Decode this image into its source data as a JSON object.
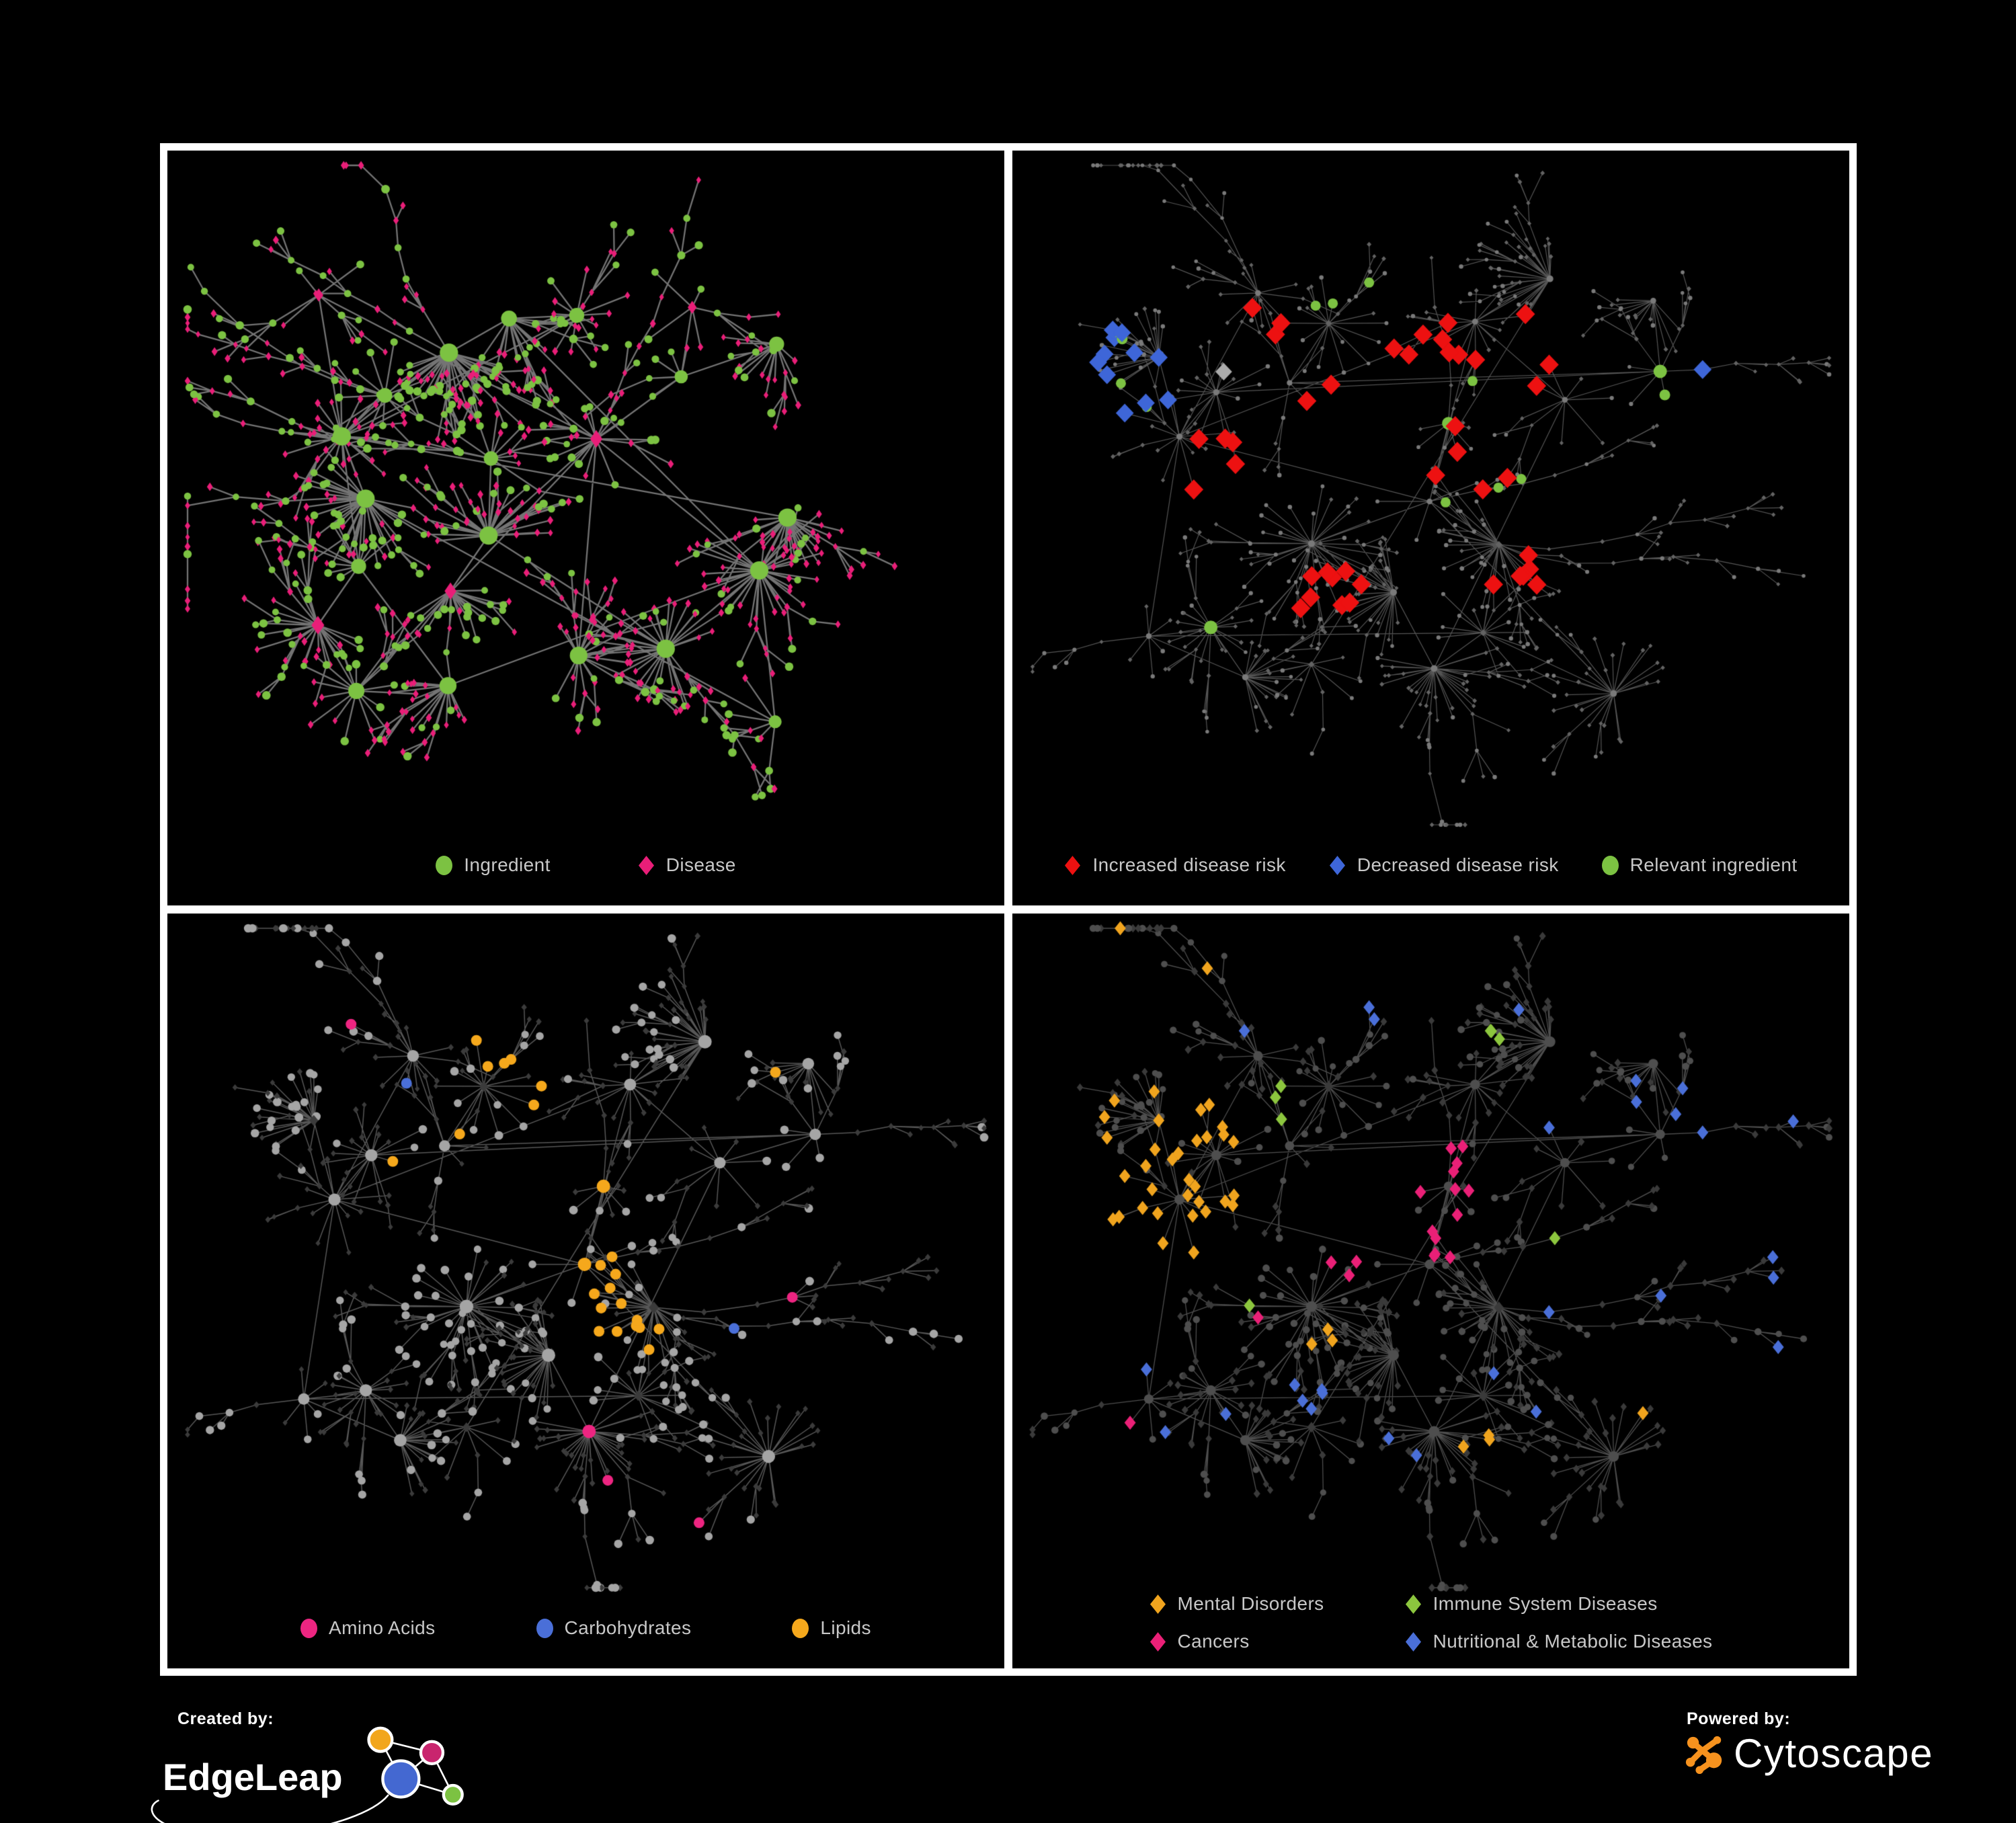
{
  "figure": {
    "background": "#000000",
    "frame_color": "#FFFFFF",
    "legend_text_color": "#C8C8C8"
  },
  "panels": [
    {
      "id": "ingredient-disease",
      "legend": [
        {
          "shape": "circle",
          "color": "#7CC242",
          "label": "Ingredient"
        },
        {
          "shape": "diamond",
          "color": "#E91E78",
          "label": "Disease"
        }
      ]
    },
    {
      "id": "disease-risk",
      "legend": [
        {
          "shape": "diamond",
          "color": "#ED1111",
          "label": "Increased disease risk"
        },
        {
          "shape": "diamond",
          "color": "#3E66D8",
          "label": "Decreased disease risk"
        },
        {
          "shape": "circle",
          "color": "#7CC242",
          "label": "Relevant ingredient"
        }
      ]
    },
    {
      "id": "nutrient-categories",
      "legend": [
        {
          "shape": "circle",
          "color": "#ED2581",
          "label": "Amino Acids"
        },
        {
          "shape": "circle",
          "color": "#4A6FD8",
          "label": "Carbohydrates"
        },
        {
          "shape": "circle",
          "color": "#F5A81C",
          "label": "Lipids"
        }
      ]
    },
    {
      "id": "disease-categories",
      "legend_columns": 2,
      "legend": [
        {
          "shape": "diamond",
          "color": "#F0A41E",
          "label": "Mental Disorders"
        },
        {
          "shape": "diamond",
          "color": "#8CC63E",
          "label": "Immune System Diseases"
        },
        {
          "shape": "diamond",
          "color": "#EA2077",
          "label": "Cancers"
        },
        {
          "shape": "diamond",
          "color": "#4A6FD8",
          "label": "Nutritional & Metabolic Diseases"
        }
      ]
    }
  ],
  "footer": {
    "created_by_label": "Created by:",
    "created_by_brand": "EdgeLeap",
    "powered_by_label": "Powered by:",
    "powered_by_brand": "Cytoscape",
    "cytoscape_orange": "#F6921E",
    "edgeleap_colors": {
      "orange": "#F2A61C",
      "magenta": "#C9256E",
      "blue": "#4468D1",
      "green": "#7CC242"
    }
  },
  "chart_data": {
    "type": "network",
    "note": "Four styled views of the same ingredient-disease association network (Cytoscape export). Node positions are procedurally approximated from seeds; colors/sizes per panel below.",
    "layout_seeds": {
      "panel_0": 13,
      "shared_panels_1_2_3": 47
    },
    "panel_styles": [
      {
        "panel": "ingredient-disease",
        "seed": 13,
        "edge_color": "#7A7A7A",
        "edge_width": 2.3,
        "edge_alpha": 0.95,
        "diamond_tall": 1.45,
        "base": {
          "circle": "#7CC242",
          "diamond": "#E91E78",
          "circle_r": 5.6,
          "diamond_s": 5.8
        },
        "hub_bonus": {
          "base": 2.5,
          "per_deg": 0.22,
          "max": 8
        },
        "jitter": 1.6,
        "highlights": []
      },
      {
        "panel": "disease-risk",
        "seed": 21,
        "edge_color": "#6A6A6A",
        "edge_width": 1.2,
        "edge_alpha": 0.8,
        "diamond_tall": 1.05,
        "base": {
          "circle": "#7A7A7A",
          "diamond": "#636363",
          "circle_r": 3.0,
          "diamond_s": 3.4
        },
        "hub_bonus": {
          "base": 0.8,
          "per_deg": 0.04,
          "max": 2
        },
        "jitter": 0.6,
        "highlights": [
          {
            "shape": "diamond",
            "color": "#ED1111",
            "size": 15,
            "radius": 60,
            "p": 0.6,
            "foci": [
              [
                0.3,
                0.29
              ],
              [
                0.4,
                0.32
              ],
              [
                0.47,
                0.35
              ],
              [
                0.37,
                0.42
              ],
              [
                0.52,
                0.29
              ],
              [
                0.63,
                0.29
              ],
              [
                0.55,
                0.46
              ],
              [
                0.37,
                0.63
              ],
              [
                0.6,
                0.61
              ],
              [
                0.33,
                0.37
              ],
              [
                0.45,
                0.42
              ],
              [
                0.25,
                0.47
              ]
            ]
          },
          {
            "shape": "diamond",
            "color": "#3E66D8",
            "size": 14,
            "radius": 46,
            "p": 0.6,
            "foci": [
              [
                0.13,
                0.3
              ],
              [
                0.16,
                0.34
              ],
              [
                0.11,
                0.39
              ],
              [
                0.155,
                0.41
              ]
            ]
          },
          {
            "shape": "diamond",
            "color": "#3E66D8",
            "size": 14,
            "radius": 26,
            "p": 0.95,
            "foci": [
              [
                0.815,
                0.335
              ],
              [
                0.838,
                0.34
              ]
            ]
          },
          {
            "shape": "diamond",
            "color": "#ABABAB",
            "size": 13,
            "radius": 34,
            "p": 0.45,
            "foci": [
              [
                0.215,
                0.27
              ],
              [
                0.33,
                0.38
              ],
              [
                0.42,
                0.4
              ],
              [
                0.465,
                0.455
              ],
              [
                0.3,
                0.55
              ],
              [
                0.25,
                0.33
              ],
              [
                0.52,
                0.44
              ]
            ]
          },
          {
            "shape": "circle",
            "color": "#7CC242",
            "size": 7.5,
            "radius": 160,
            "p": 0.15,
            "foci": [
              [
                0.33,
                0.33
              ],
              [
                0.45,
                0.35
              ],
              [
                0.25,
                0.35
              ],
              [
                0.52,
                0.38
              ],
              [
                0.4,
                0.28
              ]
            ]
          },
          {
            "shape": "circle",
            "color": "#7CC242",
            "size": 8,
            "radius": 30,
            "p": 0.9,
            "foci": [
              [
                0.79,
                0.345
              ],
              [
                0.24,
                0.7
              ],
              [
                0.13,
                0.26
              ]
            ]
          }
        ]
      },
      {
        "panel": "nutrient-categories",
        "seed": 22,
        "edge_color": "#616161",
        "edge_width": 1.5,
        "edge_alpha": 0.9,
        "diamond_tall": 1.2,
        "base": {
          "circle": "#A5A5A5",
          "diamond": "#3B3B3B",
          "circle_r": 6.0,
          "diamond_s": 4.8
        },
        "hub_bonus": {
          "base": 1.8,
          "per_deg": 0.07,
          "max": 5
        },
        "jitter": 0.9,
        "highlights": [
          {
            "shape": "circle",
            "color": "#F5A81C",
            "size": 8,
            "radius": 62,
            "p": 0.52,
            "foci": [
              [
                0.33,
                0.16
              ],
              [
                0.37,
                0.21
              ],
              [
                0.3,
                0.32
              ],
              [
                0.27,
                0.4
              ],
              [
                0.34,
                0.44
              ],
              [
                0.52,
                0.56
              ],
              [
                0.46,
                0.29
              ],
              [
                0.24,
                0.25
              ],
              [
                0.4,
                0.1
              ],
              [
                0.56,
                0.62
              ]
            ]
          },
          {
            "shape": "circle",
            "color": "#4A6FD8",
            "size": 8,
            "radius": 36,
            "p": 0.45,
            "foci": [
              [
                0.4,
                0.155
              ],
              [
                0.365,
                0.205
              ],
              [
                0.31,
                0.24
              ],
              [
                0.7,
                0.6
              ]
            ]
          },
          {
            "shape": "circle",
            "color": "#ED2581",
            "size": 8,
            "radius": 55,
            "p": 0.5,
            "foci": [
              [
                0.13,
                0.55
              ],
              [
                0.22,
                0.78
              ],
              [
                0.5,
                0.8
              ],
              [
                0.47,
                0.67
              ],
              [
                0.72,
                0.55
              ],
              [
                0.05,
                0.33
              ],
              [
                0.93,
                0.34
              ],
              [
                0.44,
                0.03
              ],
              [
                0.25,
                0.13
              ],
              [
                0.62,
                0.9
              ]
            ]
          },
          {
            "shape": "circle",
            "color": "#F5A81C",
            "size": 8,
            "radius": 9999,
            "p": 0.02,
            "foci": [
              [
                0.5,
                0.5
              ]
            ]
          }
        ]
      },
      {
        "panel": "disease-categories",
        "seed": 23,
        "edge_color": "#5C5C5C",
        "edge_width": 1.3,
        "edge_alpha": 0.85,
        "diamond_tall": 1.25,
        "base": {
          "circle": "#4E4E4E",
          "diamond": "#3A3A3A",
          "circle_r": 5.0,
          "diamond_s": 6.0
        },
        "hub_bonus": {
          "base": 1.5,
          "per_deg": 0.05,
          "max": 3
        },
        "jitter": 0.8,
        "highlights": [
          {
            "shape": "diamond",
            "color": "#F0A41E",
            "size": 10.5,
            "radius": 85,
            "p": 0.8,
            "foci": [
              [
                0.155,
                0.35
              ],
              [
                0.19,
                0.4
              ],
              [
                0.12,
                0.42
              ],
              [
                0.21,
                0.32
              ],
              [
                0.165,
                0.46
              ],
              [
                0.1,
                0.37
              ],
              [
                0.22,
                0.38
              ]
            ]
          },
          {
            "shape": "diamond",
            "color": "#F0A41E",
            "size": 10.5,
            "radius": 40,
            "p": 0.4,
            "foci": [
              [
                0.12,
                0.06
              ],
              [
                0.25,
                0.08
              ],
              [
                0.55,
                0.76
              ],
              [
                0.38,
                0.62
              ],
              [
                0.74,
                0.72
              ],
              [
                0.3,
                0.9
              ]
            ]
          },
          {
            "shape": "diamond",
            "color": "#EA2077",
            "size": 10.5,
            "radius": 60,
            "p": 0.6,
            "foci": [
              [
                0.44,
                0.42
              ],
              [
                0.5,
                0.46
              ],
              [
                0.47,
                0.52
              ],
              [
                0.42,
                0.49
              ],
              [
                0.55,
                0.4
              ],
              [
                0.5,
                0.36
              ]
            ]
          },
          {
            "shape": "diamond",
            "color": "#EA2077",
            "size": 10.5,
            "radius": 36,
            "p": 0.6,
            "foci": [
              [
                0.87,
                0.21
              ],
              [
                0.28,
                0.63
              ],
              [
                0.6,
                0.9
              ],
              [
                0.13,
                0.78
              ]
            ]
          },
          {
            "shape": "diamond",
            "color": "#4A6FD8",
            "size": 10.5,
            "radius": 46,
            "p": 0.55,
            "foci": [
              [
                0.645,
                0.52
              ],
              [
                0.69,
                0.56
              ],
              [
                0.61,
                0.57
              ],
              [
                0.78,
                0.24
              ],
              [
                0.82,
                0.29
              ],
              [
                0.74,
                0.17
              ],
              [
                0.92,
                0.1
              ],
              [
                0.37,
                0.72
              ],
              [
                0.3,
                0.11
              ],
              [
                0.53,
                0.07
              ],
              [
                0.86,
                0.41
              ],
              [
                0.67,
                0.08
              ],
              [
                0.95,
                0.3
              ],
              [
                0.44,
                0.16
              ],
              [
                0.91,
                0.55
              ]
            ]
          },
          {
            "shape": "diamond",
            "color": "#4A6FD8",
            "size": 10.5,
            "radius": 9999,
            "p": 0.03,
            "foci": [
              [
                0.5,
                0.5
              ]
            ]
          },
          {
            "shape": "diamond",
            "color": "#8CC63E",
            "size": 10.5,
            "radius": 28,
            "p": 0.7,
            "foci": [
              [
                0.33,
                0.28
              ],
              [
                0.52,
                0.33
              ],
              [
                0.63,
                0.47
              ],
              [
                0.27,
                0.57
              ],
              [
                0.42,
                0.75
              ],
              [
                0.57,
                0.18
              ],
              [
                0.35,
                0.42
              ]
            ]
          }
        ]
      }
    ]
  }
}
